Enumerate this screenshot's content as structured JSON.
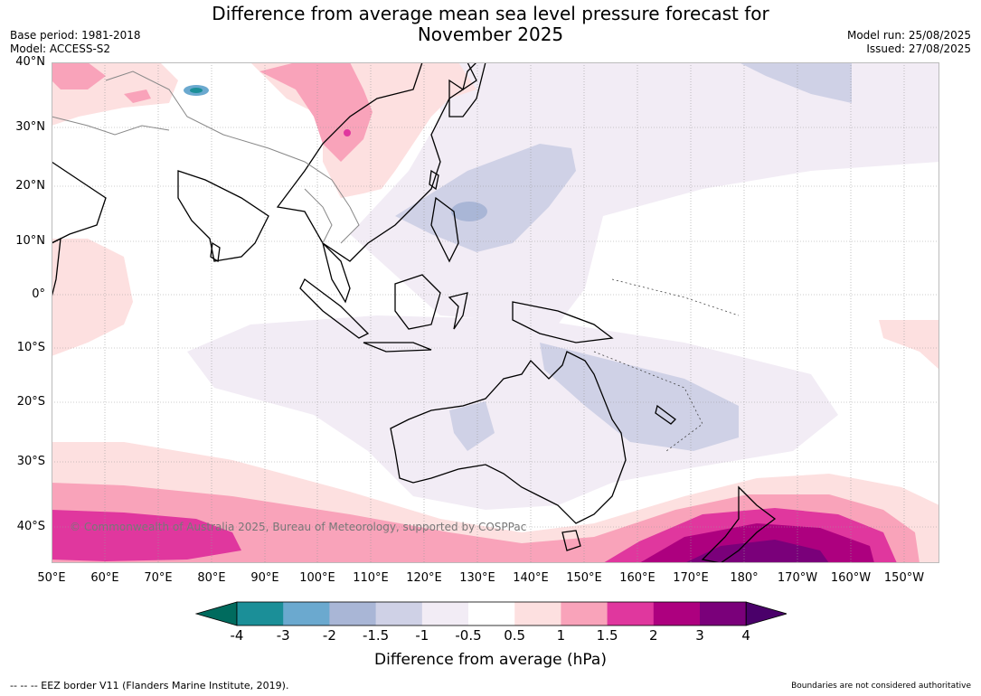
{
  "title_line1": "Difference from average mean sea level pressure forecast for",
  "title_line2": "November 2025",
  "base_period": "Base period: 1981-2018",
  "model": "Model: ACCESS-S2",
  "model_run": "Model run: 25/08/2025",
  "issued": "Issued: 27/08/2025",
  "copyright": "© Commonwealth of Australia 2025, Bureau of Meteorology, supported by COSPPac",
  "lat_labels": [
    "40°N",
    "30°N",
    "20°N",
    "10°N",
    "0°",
    "10°S",
    "20°S",
    "30°S",
    "40°S"
  ],
  "lon_labels": [
    "50°E",
    "60°E",
    "70°E",
    "80°E",
    "90°E",
    "100°E",
    "110°E",
    "120°E",
    "130°E",
    "140°E",
    "150°E",
    "160°E",
    "170°E",
    "180°",
    "170°W",
    "160°W",
    "150°W"
  ],
  "colorbar": {
    "ticks": [
      "-4",
      "-3",
      "-2",
      "-1.5",
      "-1",
      "-0.5",
      "0.5",
      "1",
      "1.5",
      "2",
      "3",
      "4"
    ],
    "colors": [
      "#006b5e",
      "#1b8f98",
      "#6ba9cf",
      "#a9b6d6",
      "#cfd1e6",
      "#f2ecf5",
      "#ffffff",
      "#fde0e0",
      "#f9a3ba",
      "#e0379e",
      "#ad007f",
      "#7a007a",
      "#4a006a"
    ],
    "label": "Difference from average (hPa)"
  },
  "footer_left": "--  --  -- EEZ border V11 (Flanders Marine Institute, 2019).",
  "footer_right": "Boundaries are not considered authoritative"
}
